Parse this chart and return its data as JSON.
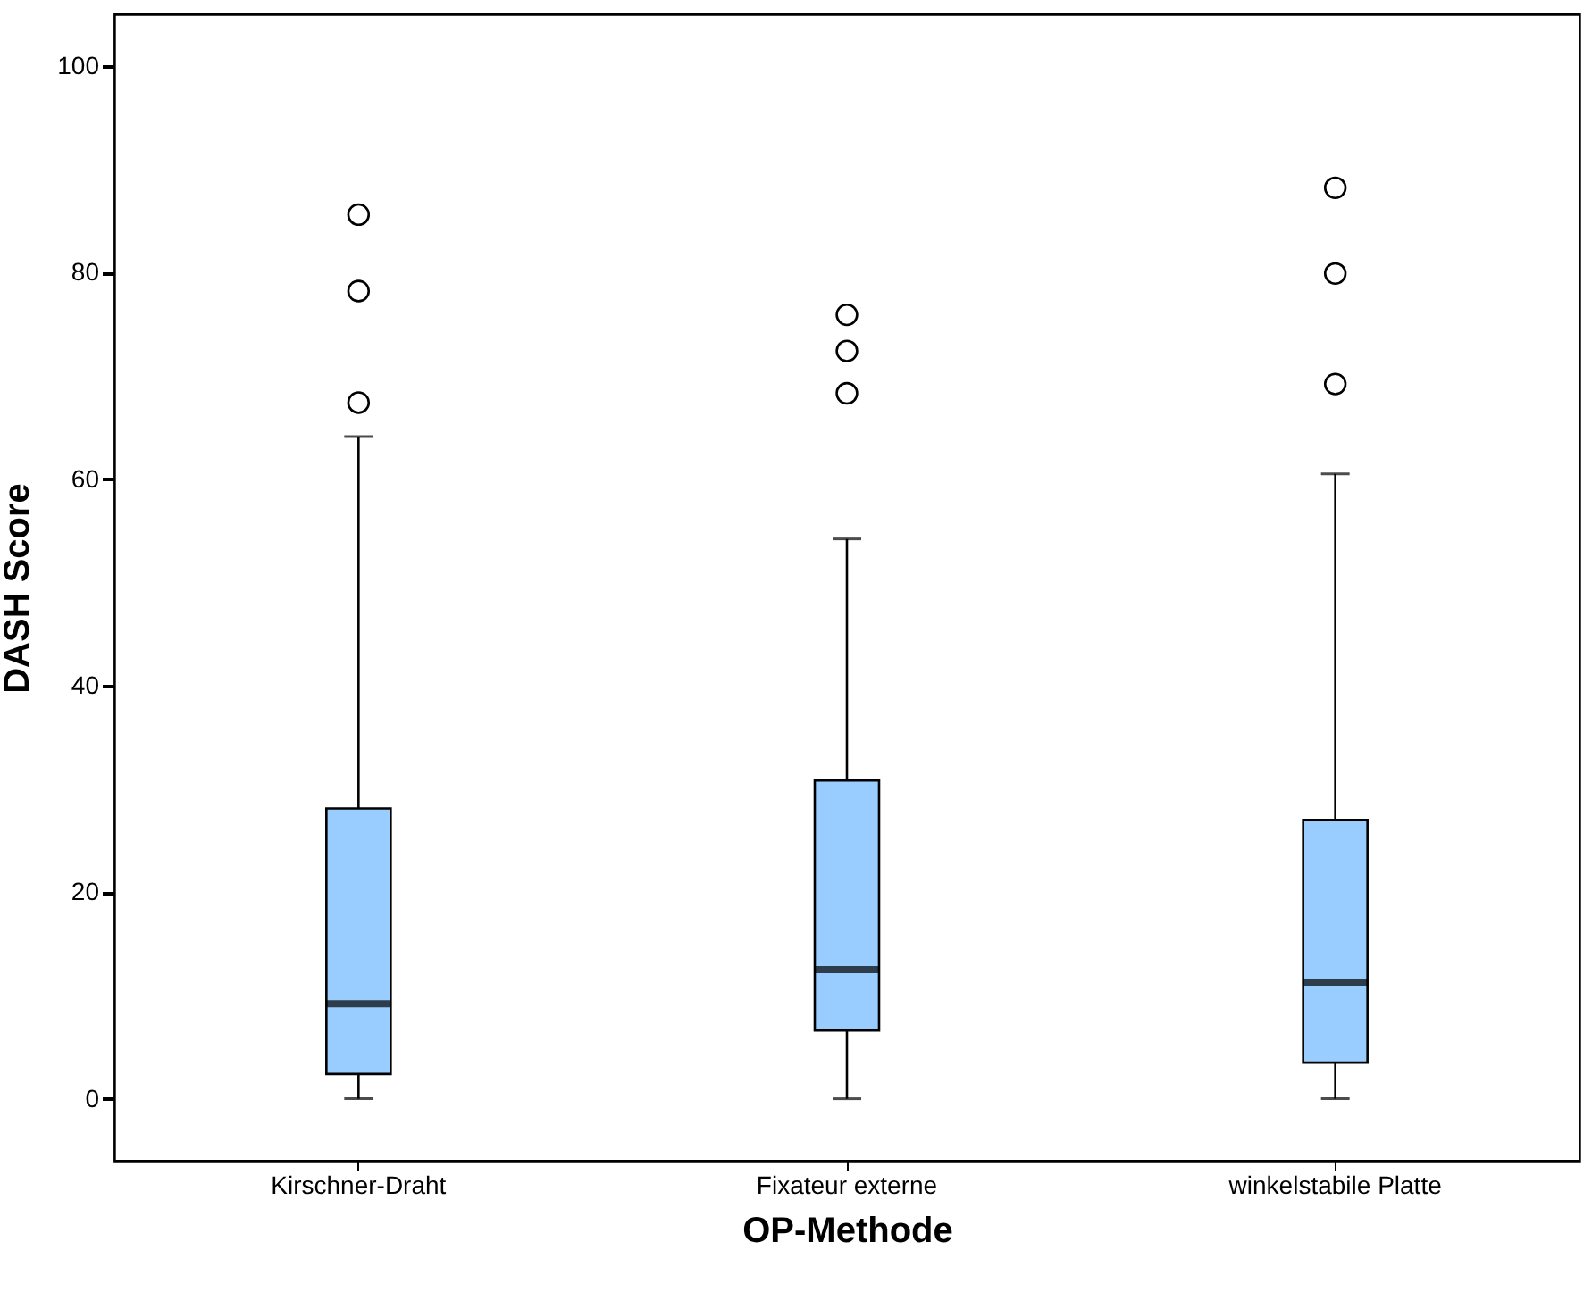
{
  "chart_data": {
    "type": "box",
    "xlabel": "OP-Methode",
    "ylabel": "DASH Score",
    "categories": [
      "Kirschner-Draht",
      "Fixateur externe",
      "winkelstabile Platte"
    ],
    "color": "#99ccff",
    "boxes": [
      {
        "low": 0,
        "q1": 2.4,
        "median": 9.2,
        "q3": 28.1,
        "high": 64.1,
        "outliers": [
          67.4,
          78.2,
          85.6
        ]
      },
      {
        "low": 0,
        "q1": 6.6,
        "median": 12.5,
        "q3": 30.8,
        "high": 54.2,
        "outliers": [
          68.3,
          72.4,
          75.9
        ]
      },
      {
        "low": 0,
        "q1": 3.5,
        "median": 11.3,
        "q3": 27.0,
        "high": 60.5,
        "outliers": [
          69.2,
          79.9,
          88.2
        ]
      }
    ],
    "ylim": [
      -6,
      105
    ],
    "yticks": [
      0,
      20,
      40,
      60,
      80,
      100
    ]
  }
}
